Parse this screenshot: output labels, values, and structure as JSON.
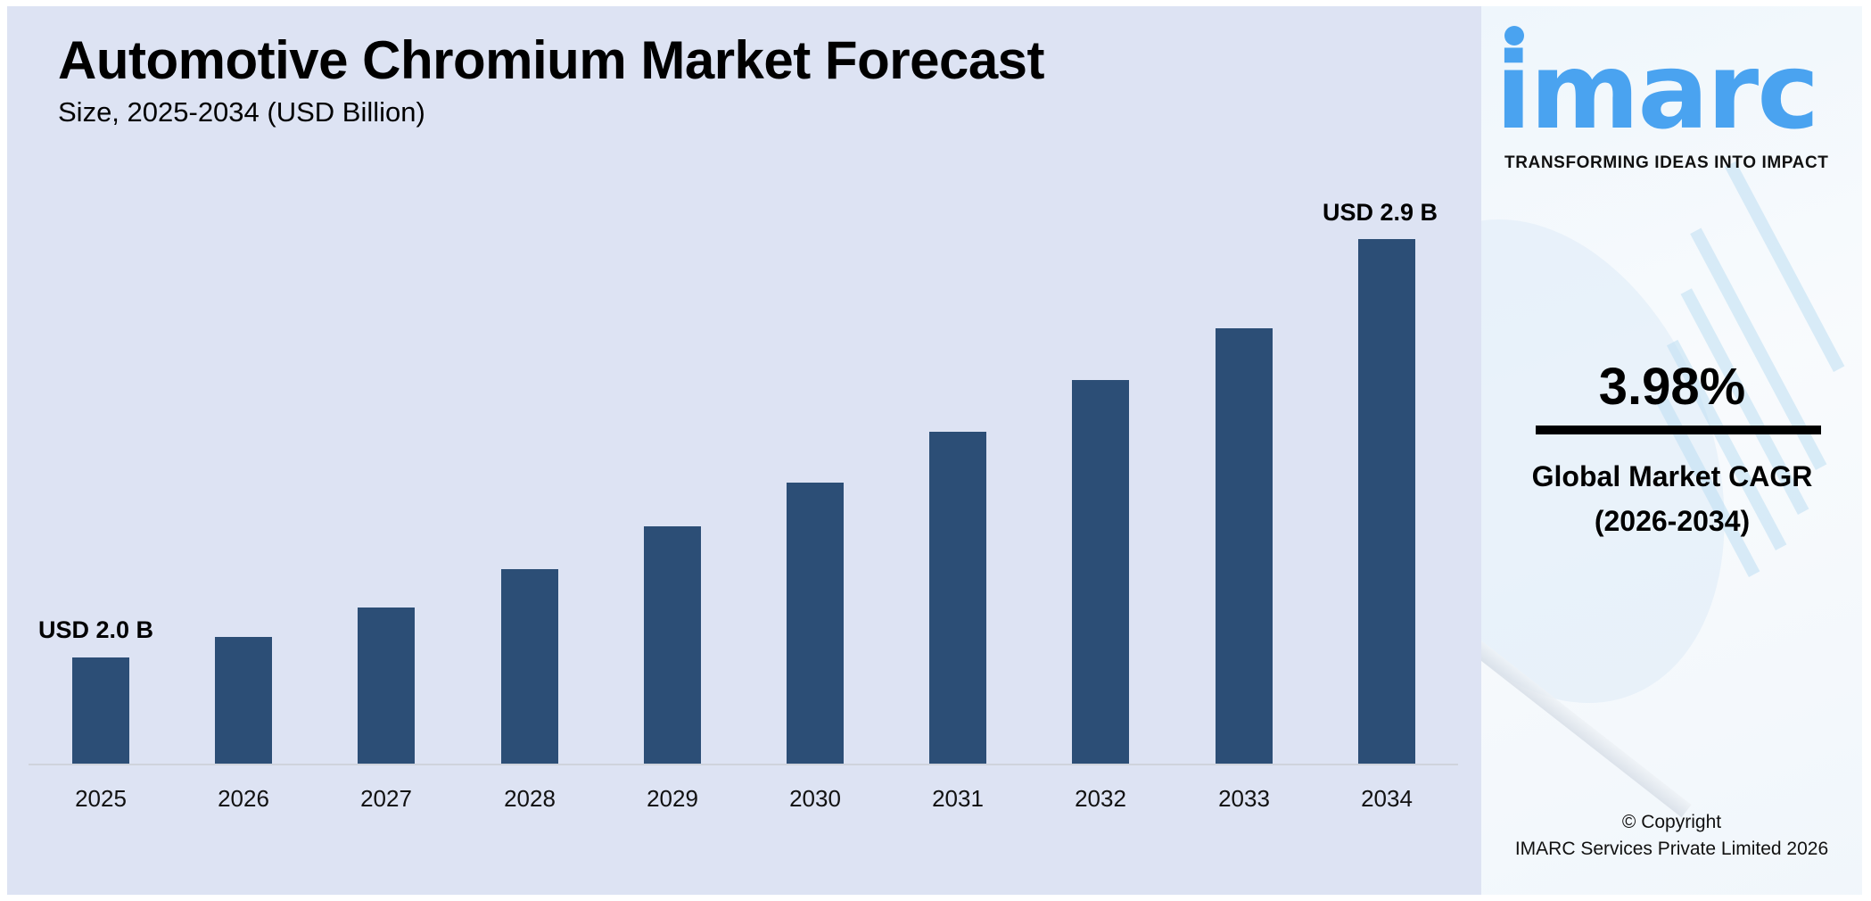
{
  "header": {
    "title": "Automotive Chromium Market Forecast",
    "subtitle": "Size, 2025-2034 (USD Billion)"
  },
  "chart": {
    "bar_color": "#2c4e76",
    "background_color": "#dde3f3",
    "first_label": "USD 2.0 B",
    "last_label": "USD 2.9 B"
  },
  "sidebar": {
    "logo_text": "imarc",
    "logo_color": "#4aa3f0",
    "tagline": "TRANSFORMING IDEAS INTO IMPACT",
    "cagr_value": "3.98%",
    "cagr_label_line1": "Global Market CAGR",
    "cagr_label_line2": "(2026-2034)",
    "copyright_line1": "© Copyright",
    "copyright_line2": "IMARC Services Private Limited 2026"
  },
  "chart_data": {
    "type": "bar",
    "title": "Automotive Chromium Market Forecast",
    "subtitle": "Size, 2025-2034 (USD Billion)",
    "xlabel": "",
    "ylabel": "USD Billion",
    "categories": [
      "2025",
      "2026",
      "2027",
      "2028",
      "2029",
      "2030",
      "2031",
      "2032",
      "2033",
      "2034"
    ],
    "values": [
      2.0,
      2.08,
      2.16,
      2.25,
      2.34,
      2.43,
      2.53,
      2.63,
      2.73,
      2.9
    ],
    "annotations": [
      {
        "category": "2025",
        "text": "USD 2.0 B"
      },
      {
        "category": "2034",
        "text": "USD 2.9 B"
      }
    ],
    "cagr": "3.98%",
    "cagr_period": "2026-2034",
    "grid": false,
    "legend": "none",
    "y_axis_visible": false
  }
}
